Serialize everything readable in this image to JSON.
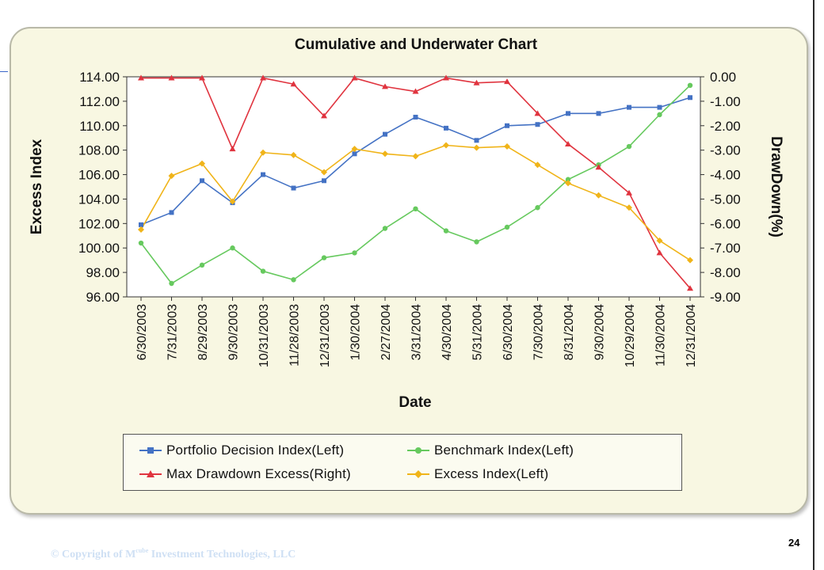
{
  "chart_data": {
    "type": "line",
    "title": "Cumulative and Underwater Chart",
    "xlabel": "Date",
    "ylabel_left": "Excess Index",
    "ylabel_right": "DrawDown(%)",
    "ylim_left": [
      96,
      114
    ],
    "ylim_right": [
      -9,
      0
    ],
    "yticks_left": [
      "114.00",
      "112.00",
      "110.00",
      "108.00",
      "106.00",
      "104.00",
      "102.00",
      "100.00",
      "98.00",
      "96.00"
    ],
    "yticks_right": [
      "0.00",
      "-1.00",
      "-2.00",
      "-3.00",
      "-4.00",
      "-5.00",
      "-6.00",
      "-7.00",
      "-8.00",
      "-9.00"
    ],
    "grid": false,
    "legend_position": "bottom",
    "categories": [
      "6/30/2003",
      "7/31/2003",
      "8/29/2003",
      "9/30/2003",
      "10/31/2003",
      "11/28/2003",
      "12/31/2003",
      "1/30/2004",
      "2/27/2004",
      "3/31/2004",
      "4/30/2004",
      "5/31/2004",
      "6/30/2004",
      "7/30/2004",
      "8/31/2004",
      "9/30/2004",
      "10/29/2004",
      "11/30/2004",
      "12/31/2004"
    ],
    "series": [
      {
        "name": "Portfolio Decision Index(Left)",
        "axis": "left",
        "color": "#4472c4",
        "marker": "square",
        "values": [
          101.9,
          102.9,
          105.5,
          103.7,
          106.0,
          104.9,
          105.5,
          107.7,
          109.3,
          110.7,
          109.8,
          108.8,
          110.0,
          110.1,
          111.0,
          111.0,
          111.5,
          111.5,
          112.3
        ]
      },
      {
        "name": "Benchmark Index(Left)",
        "axis": "left",
        "color": "#66c95e",
        "marker": "circle",
        "values": [
          100.4,
          97.1,
          98.6,
          100.0,
          98.1,
          97.4,
          99.2,
          99.6,
          101.6,
          103.2,
          101.4,
          100.5,
          101.7,
          103.3,
          105.6,
          106.8,
          108.3,
          110.9,
          113.3
        ]
      },
      {
        "name": "Max Drawdown Excess(Right)",
        "axis": "right",
        "color": "#e0343f",
        "marker": "triangle",
        "values": [
          -0.05,
          -0.05,
          -0.05,
          -2.95,
          -0.05,
          -0.3,
          -1.6,
          -0.05,
          -0.4,
          -0.6,
          -0.05,
          -0.25,
          -0.2,
          -1.5,
          -2.75,
          -3.7,
          -4.75,
          -7.2,
          -8.65
        ]
      },
      {
        "name": "Excess Index(Left)",
        "axis": "left",
        "color": "#f0b419",
        "marker": "diamond",
        "values": [
          101.5,
          105.9,
          106.9,
          103.8,
          107.8,
          107.6,
          106.2,
          108.1,
          107.7,
          107.5,
          108.4,
          108.2,
          108.3,
          106.8,
          105.3,
          104.3,
          103.3,
          100.6,
          99.0
        ]
      }
    ]
  },
  "legend": {
    "items": [
      {
        "label": "Portfolio Decision Index(Left)",
        "color": "#4472c4",
        "marker": "square"
      },
      {
        "label": "Benchmark Index(Left)",
        "color": "#66c95e",
        "marker": "circle"
      },
      {
        "label": "Max Drawdown Excess(Right)",
        "color": "#e0343f",
        "marker": "triangle"
      },
      {
        "label": "Excess Index(Left)",
        "color": "#f0b419",
        "marker": "diamond"
      }
    ]
  },
  "footer": {
    "copyright_prefix": "© Copyright of M",
    "copyright_sup": "cube",
    "copyright_suffix": " Investment Technologies, LLC",
    "page_number": "24"
  }
}
